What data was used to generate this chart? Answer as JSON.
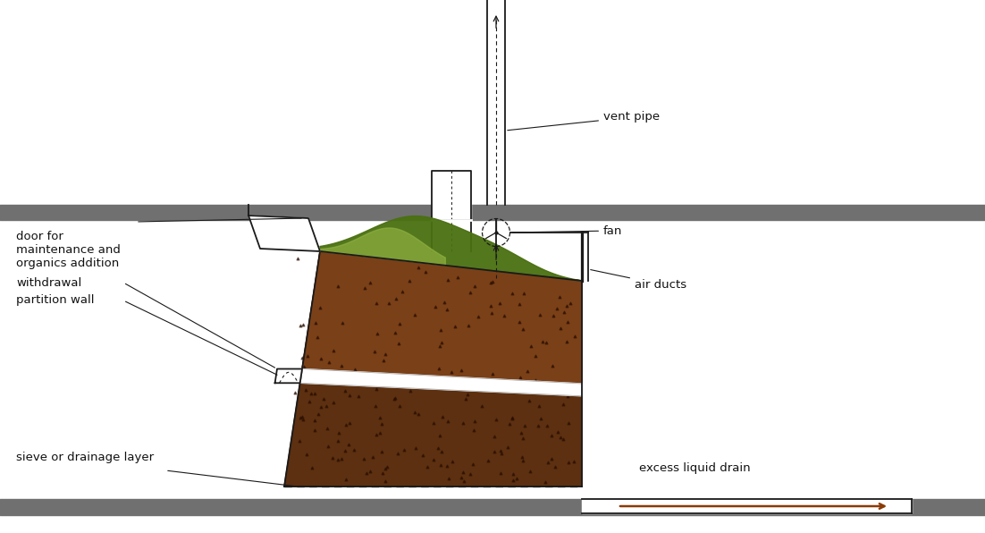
{
  "bg_color": "#ffffff",
  "line_color": "#1a1a1a",
  "gray_color": "#707070",
  "dark_brown": "#5C3010",
  "medium_brown": "#7A4018",
  "partition_white": "#FFFFFF",
  "green_dark": "#4A7010",
  "green_mid": "#6A9020",
  "green_light": "#90B040",
  "drain_arrow_color": "#8B3A05",
  "labels": {
    "vent_pipe": "vent pipe",
    "fan": "fan",
    "air_ducts": "air ducts",
    "door": "door for\nmaintenance and\norganics addition",
    "withdrawal": "withdrawal",
    "partition": "partition wall",
    "sieve": "sieve or drainage layer",
    "drain": "excess liquid drain"
  },
  "font_size": 9.5
}
